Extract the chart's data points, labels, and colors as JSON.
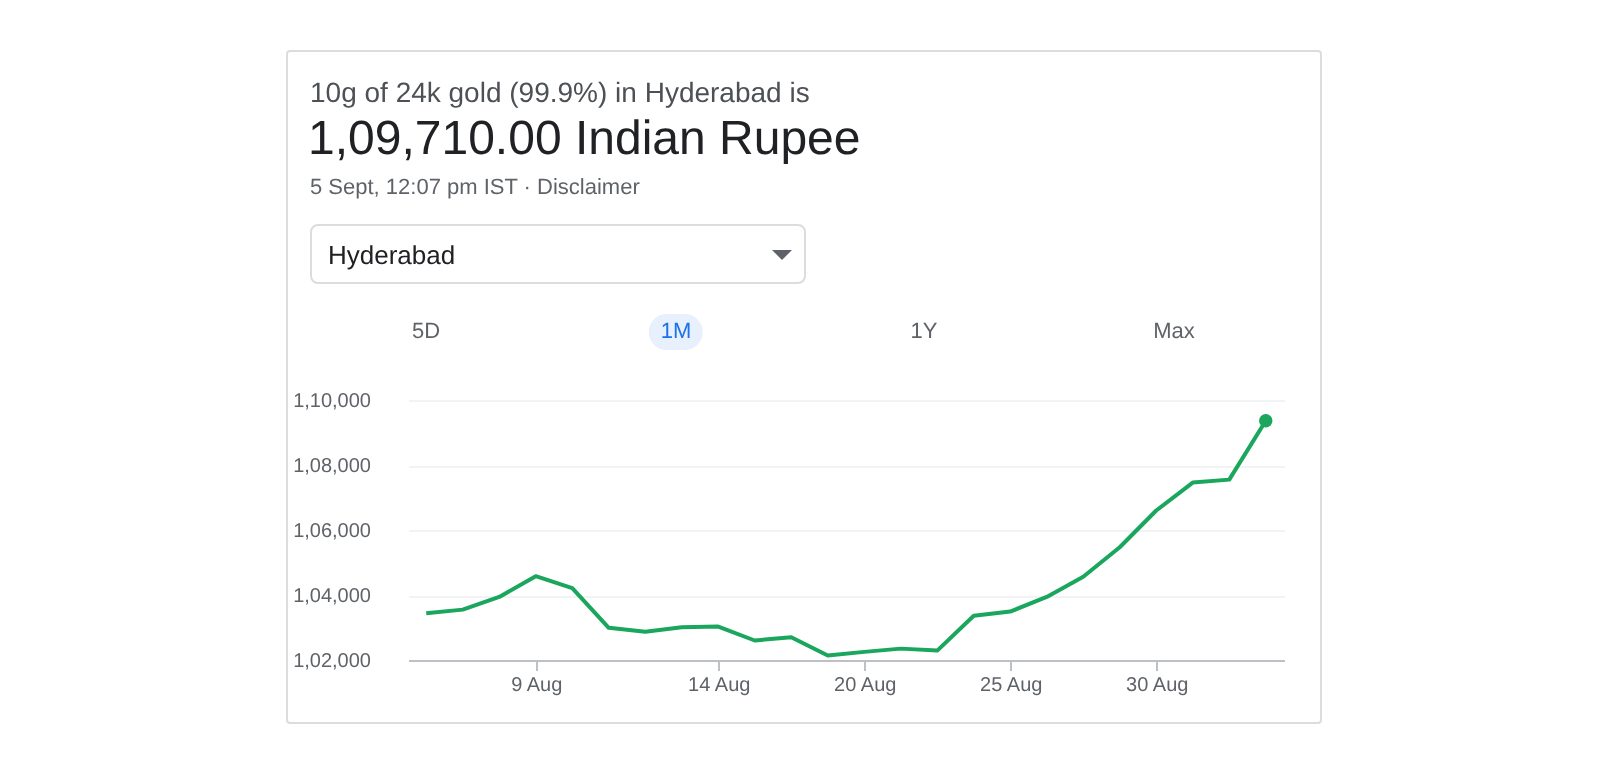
{
  "chart_data": {
    "type": "line",
    "title": "10g of 24k gold (99.9%) in Hyderabad is",
    "subtitle": "1,09,710.00 Indian Rupee",
    "annotations": [
      "5 Sept, 12:07 pm IST · Disclaimer",
      "Hyderabad",
      "5D",
      "1M",
      "1Y",
      "Max"
    ],
    "categories": [
      null,
      null,
      null,
      "9 Aug",
      null,
      null,
      null,
      null,
      "14 Aug",
      null,
      null,
      null,
      "20 Aug",
      null,
      null,
      null,
      "25 Aug",
      null,
      null,
      null,
      "30 Aug",
      null,
      null,
      null
    ],
    "series": [
      {
        "color": "#1aa65c",
        "values": [
          103440,
          103550,
          103940,
          104580,
          104210,
          102990,
          102870,
          103010,
          103030,
          102600,
          102700,
          102140,
          102250,
          102350,
          102290,
          103360,
          103490,
          103940,
          104560,
          105470,
          106600,
          107460,
          107550,
          109360
        ]
      },
      {
        "type": "scatter",
        "color": "#1aa65c",
        "values": [
          null,
          null,
          null,
          null,
          null,
          null,
          null,
          null,
          null,
          null,
          null,
          null,
          null,
          null,
          null,
          null,
          null,
          null,
          null,
          null,
          null,
          null,
          null,
          109360
        ]
      }
    ],
    "ylim": [
      102000,
      110000
    ],
    "yticks": [
      {
        "value": 102000,
        "label": "1,02,000"
      },
      {
        "value": 104000,
        "label": "1,04,000"
      },
      {
        "value": 106000,
        "label": "1,06,000"
      },
      {
        "value": 108000,
        "label": "1,08,000"
      },
      {
        "value": 110000,
        "label": "1,10,000"
      }
    ],
    "grid": "y",
    "line_style": "solid"
  }
}
